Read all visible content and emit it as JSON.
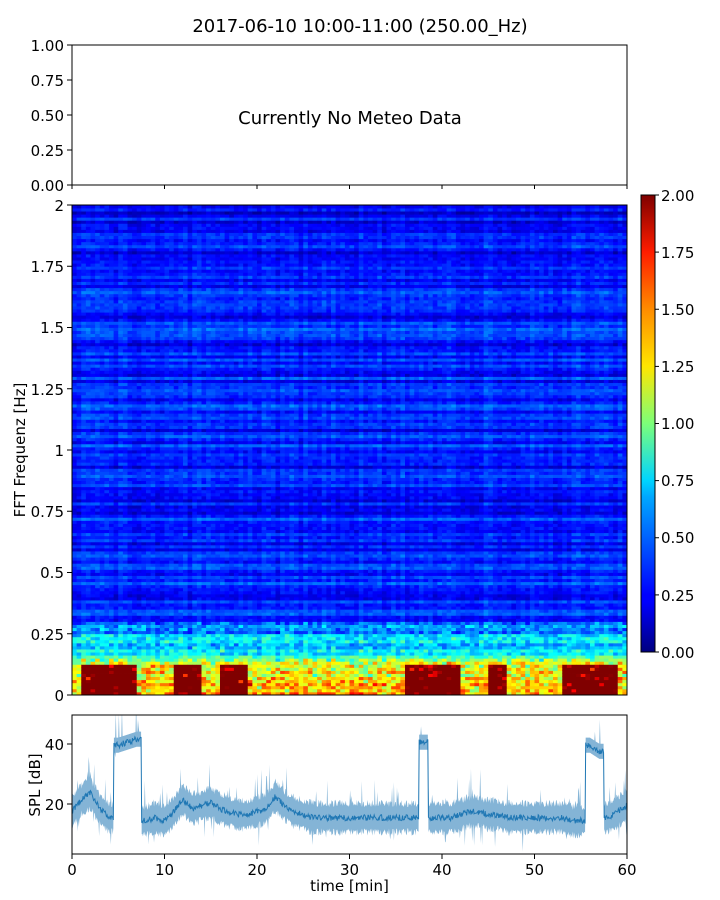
{
  "figure": {
    "title": "2017-06-10 10:00-11:00 (250.00_Hz)"
  },
  "chart_data": [
    {
      "type": "text-panel",
      "message": "Currently No Meteo Data",
      "ylim": [
        0,
        1
      ],
      "yticks": [
        "0.00",
        "0.25",
        "0.50",
        "0.75",
        "1.00"
      ]
    },
    {
      "type": "heatmap",
      "ylabel": "FFT Frequenz [Hz]",
      "xlim": [
        0,
        60
      ],
      "ylim": [
        0,
        2
      ],
      "yticks": [
        "0",
        "0.25",
        "0.5",
        "0.75",
        "1",
        "1.25",
        "1.5",
        "1.75",
        "2"
      ],
      "colormap": "jet",
      "colorbar": {
        "range": [
          0,
          2
        ],
        "ticks": [
          "0.00",
          "0.25",
          "0.50",
          "0.75",
          "1.00",
          "1.25",
          "1.50",
          "1.75",
          "2.00"
        ]
      },
      "time_bins": 120,
      "freq_bins": 160,
      "low_freq_hot_segments": [
        [
          1,
          7
        ],
        [
          11,
          14
        ],
        [
          16,
          19
        ],
        [
          36,
          42
        ],
        [
          45,
          47
        ],
        [
          53,
          59
        ]
      ]
    },
    {
      "type": "line",
      "ylabel": "SPL [dB]",
      "xlabel": "time [min]",
      "xlim": [
        0,
        60
      ],
      "ylim": [
        4,
        50
      ],
      "xticks": [
        "0",
        "10",
        "20",
        "30",
        "40",
        "50",
        "60"
      ],
      "yticks": [
        "20",
        "40"
      ],
      "color": "#1f77b4",
      "series": [
        {
          "x": [
            0,
            1,
            2,
            3,
            4,
            5,
            6,
            7,
            8,
            9,
            10,
            11,
            12,
            13,
            14,
            15,
            16,
            17,
            18,
            19,
            20,
            21,
            22,
            23,
            24,
            25,
            26,
            27,
            28,
            29,
            30,
            31,
            32,
            33,
            34,
            35,
            36,
            37,
            38,
            39,
            40,
            41,
            42,
            43,
            44,
            45,
            46,
            47,
            48,
            49,
            50,
            51,
            52,
            53,
            54,
            55,
            56,
            57,
            58,
            59,
            60
          ],
          "y": [
            18,
            22,
            24,
            19,
            16,
            40,
            41,
            42,
            15,
            16,
            15,
            18,
            22,
            19,
            20,
            21,
            19,
            18,
            17,
            17,
            18,
            19,
            23,
            20,
            18,
            17,
            16,
            16,
            16,
            16,
            16,
            16,
            16,
            16,
            16,
            16,
            16,
            16,
            41,
            16,
            16,
            16,
            17,
            18,
            18,
            17,
            17,
            16,
            16,
            16,
            16,
            16,
            16,
            16,
            15,
            15,
            40,
            38,
            16,
            18,
            20
          ]
        }
      ]
    }
  ]
}
